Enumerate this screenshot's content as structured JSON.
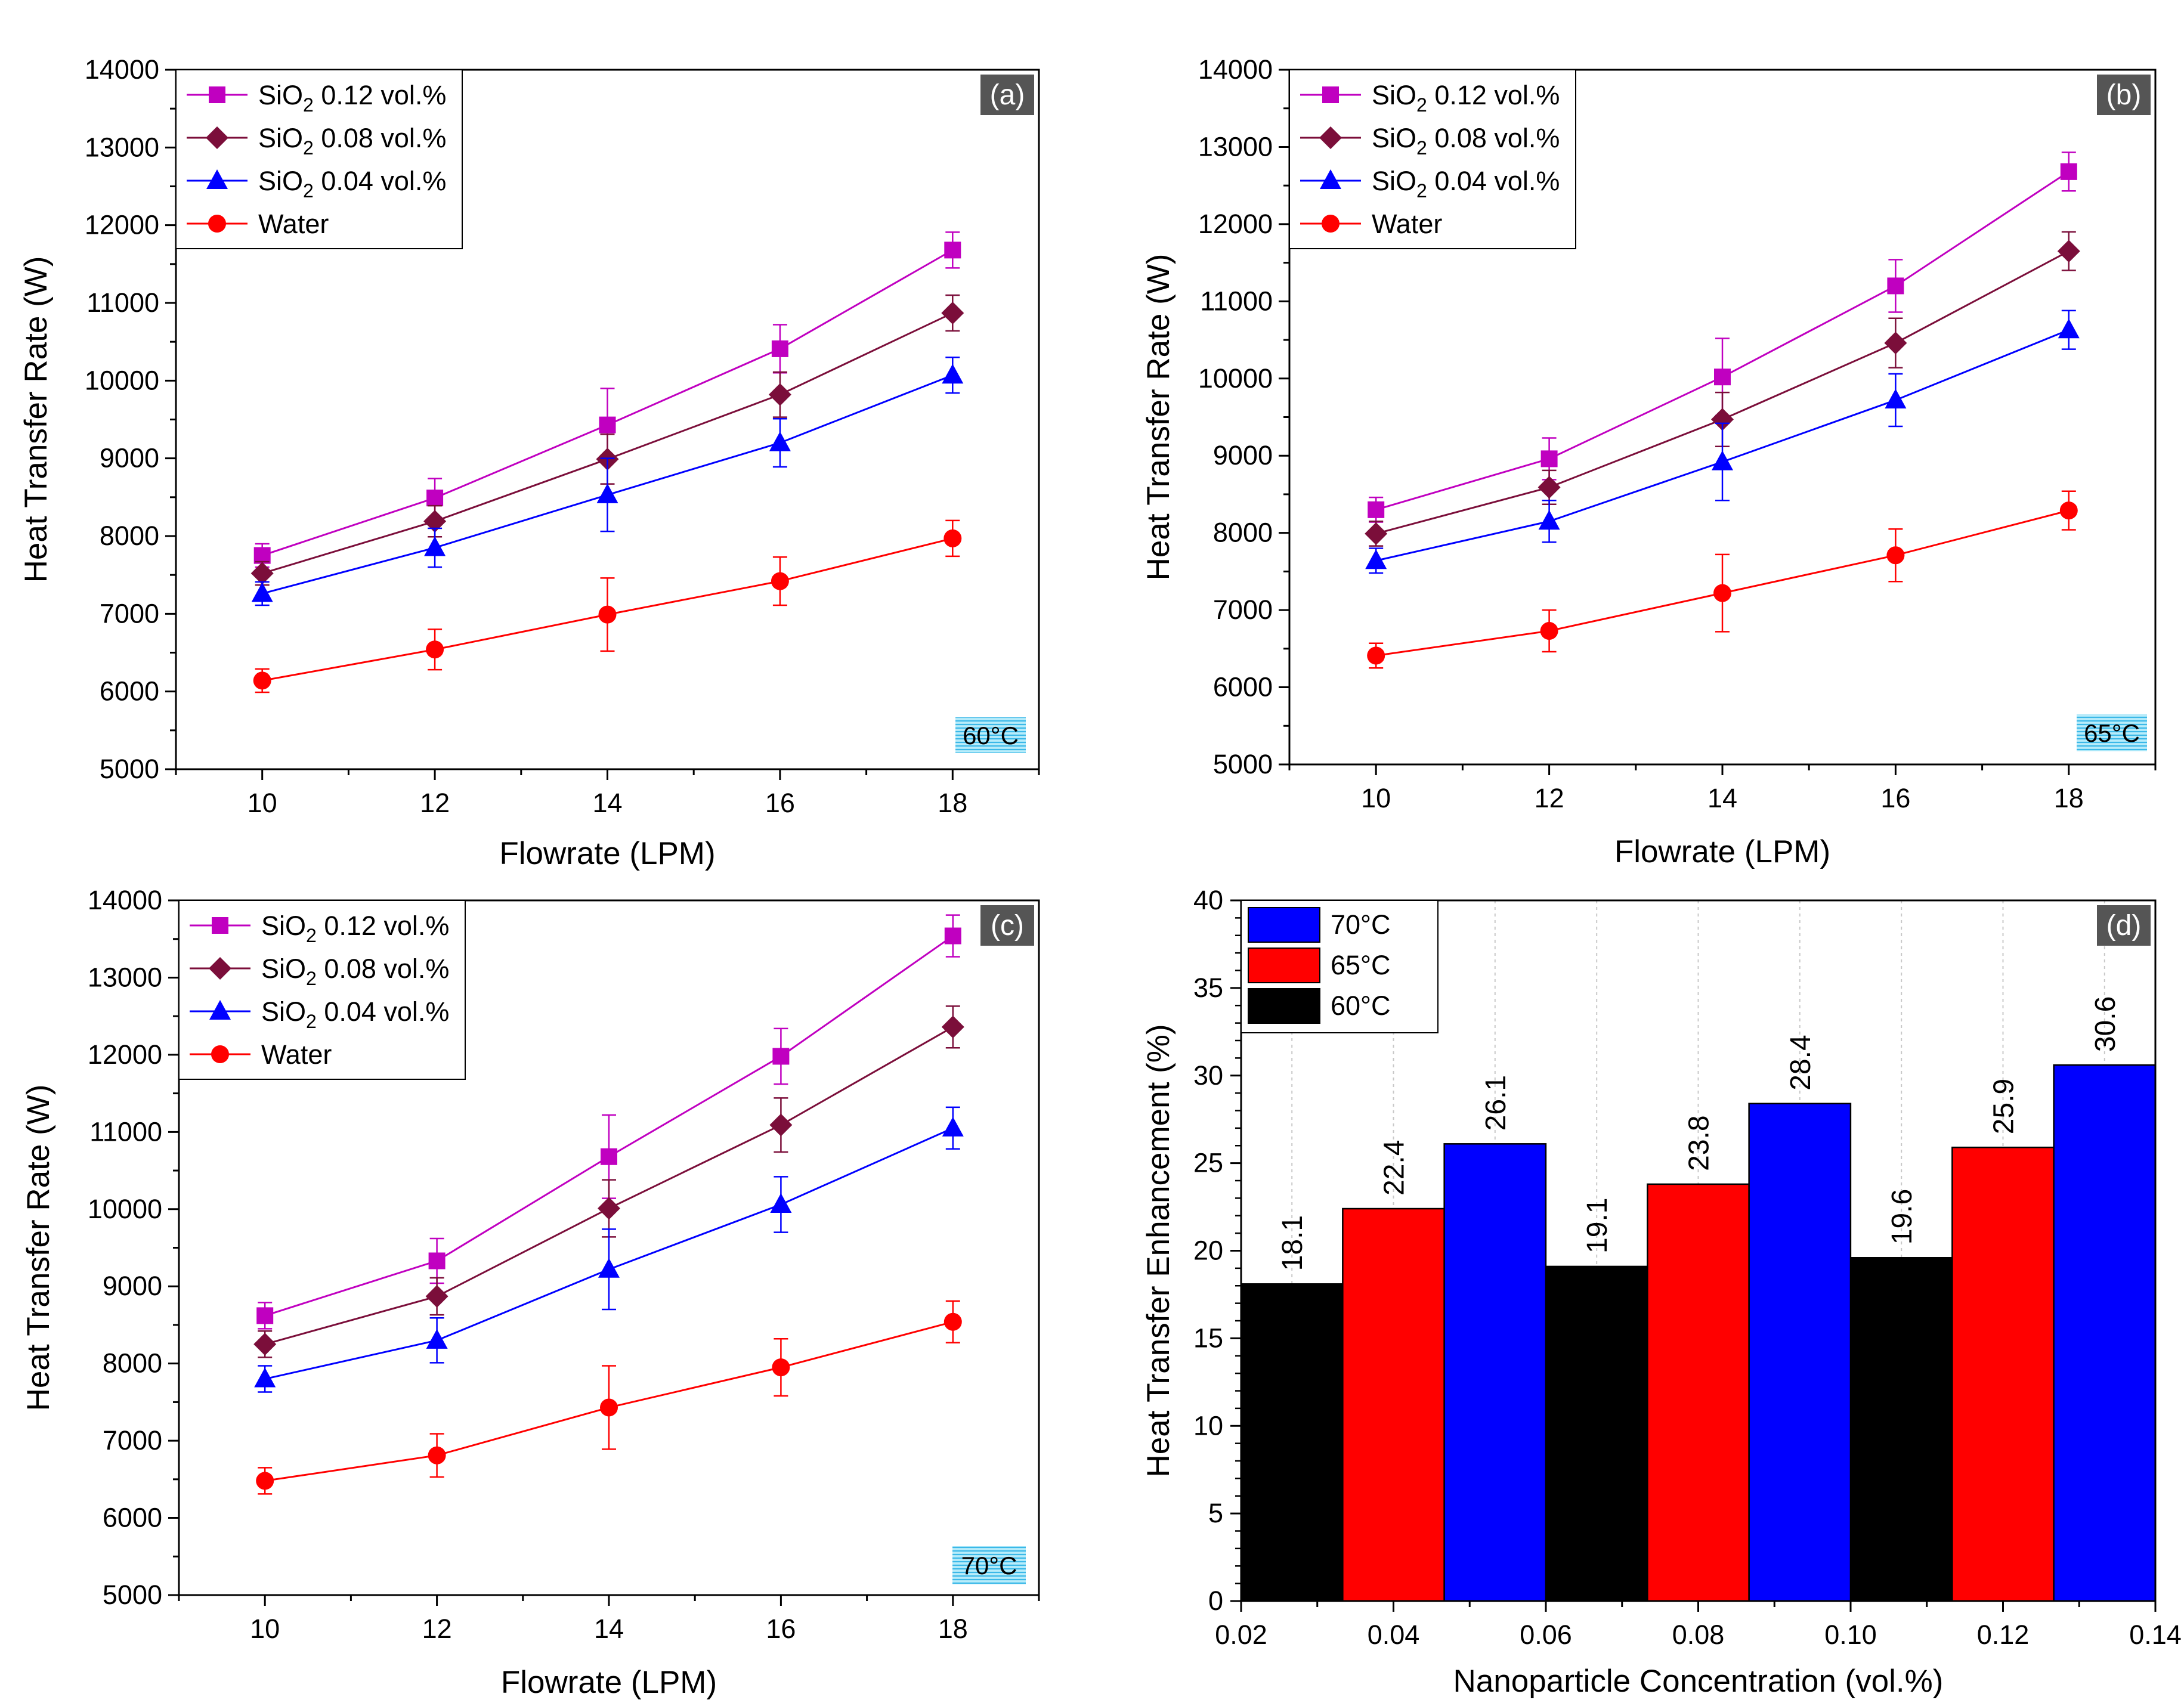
{
  "chart_data": [
    {
      "type": "line",
      "panel_label": "(a)",
      "temperature_label": "60°C",
      "xlabel": "Flowrate (LPM)",
      "ylabel": "Heat Transfer Rate (W)",
      "xlim": [
        9,
        19
      ],
      "ylim": [
        5000,
        14000
      ],
      "xticks": [
        "10",
        "12",
        "14",
        "16",
        "18"
      ],
      "yticks": [
        "5000",
        "6000",
        "7000",
        "8000",
        "9000",
        "10000",
        "11000",
        "12000",
        "13000",
        "14000"
      ],
      "x": [
        10,
        12,
        14,
        16,
        18
      ],
      "legend_position": "top-left",
      "series": [
        {
          "name": "SiO2 0.12 vol.%",
          "legend": {
            "prefix": "SiO",
            "sub": "2",
            "suffix": " 0.12 vol.%"
          },
          "color": "#c000c0",
          "marker": "square",
          "values": [
            7750,
            8490,
            9430,
            10410,
            11680
          ],
          "errors": [
            150,
            250,
            470,
            310,
            230
          ]
        },
        {
          "name": "SiO2 0.08 vol.%",
          "legend": {
            "prefix": "SiO",
            "sub": "2",
            "suffix": " 0.08 vol.%"
          },
          "color": "#7b0e3a",
          "marker": "diamond",
          "values": [
            7520,
            8190,
            8990,
            9820,
            10870
          ],
          "errors": [
            150,
            200,
            320,
            290,
            230
          ]
        },
        {
          "name": "SiO2 0.04 vol.%",
          "legend": {
            "prefix": "SiO",
            "sub": "2",
            "suffix": " 0.04 vol.%"
          },
          "color": "#0000ff",
          "marker": "triangle",
          "values": [
            7260,
            7850,
            8530,
            9200,
            10070
          ],
          "errors": [
            150,
            250,
            470,
            310,
            230
          ]
        },
        {
          "name": "Water",
          "legend": {
            "prefix": "Water",
            "sub": "",
            "suffix": ""
          },
          "color": "#ff0000",
          "marker": "circle",
          "values": [
            6140,
            6540,
            6990,
            7420,
            7970
          ],
          "errors": [
            150,
            260,
            470,
            310,
            230
          ]
        }
      ]
    },
    {
      "type": "line",
      "panel_label": "(b)",
      "temperature_label": "65°C",
      "xlabel": "Flowrate (LPM)",
      "ylabel": "Heat Transfer Rate (W)",
      "xlim": [
        9,
        19
      ],
      "ylim": [
        5000,
        14000
      ],
      "xticks": [
        "10",
        "12",
        "14",
        "16",
        "18"
      ],
      "yticks": [
        "5000",
        "6000",
        "7000",
        "8000",
        "9000",
        "10000",
        "11000",
        "12000",
        "13000",
        "14000"
      ],
      "x": [
        10,
        12,
        14,
        16,
        18
      ],
      "legend_position": "top-left",
      "series": [
        {
          "name": "SiO2 0.12 vol.%",
          "legend": {
            "prefix": "SiO",
            "sub": "2",
            "suffix": " 0.12 vol.%"
          },
          "color": "#c000c0",
          "marker": "square",
          "values": [
            8300,
            8960,
            10020,
            11200,
            12680
          ],
          "errors": [
            160,
            270,
            500,
            340,
            250
          ]
        },
        {
          "name": "SiO2 0.08 vol.%",
          "legend": {
            "prefix": "SiO",
            "sub": "2",
            "suffix": " 0.08 vol.%"
          },
          "color": "#7b0e3a",
          "marker": "diamond",
          "values": [
            7990,
            8590,
            9470,
            10460,
            11650
          ],
          "errors": [
            160,
            220,
            350,
            320,
            250
          ]
        },
        {
          "name": "SiO2 0.04 vol.%",
          "legend": {
            "prefix": "SiO",
            "sub": "2",
            "suffix": " 0.04 vol.%"
          },
          "color": "#0000ff",
          "marker": "triangle",
          "values": [
            7640,
            8150,
            8920,
            9720,
            10630
          ],
          "errors": [
            160,
            270,
            500,
            340,
            250
          ]
        },
        {
          "name": "Water",
          "legend": {
            "prefix": "Water",
            "sub": "",
            "suffix": ""
          },
          "color": "#ff0000",
          "marker": "circle",
          "values": [
            6410,
            6730,
            7220,
            7710,
            8290
          ],
          "errors": [
            160,
            270,
            500,
            340,
            250
          ]
        }
      ]
    },
    {
      "type": "line",
      "panel_label": "(c)",
      "temperature_label": "70°C",
      "xlabel": "Flowrate (LPM)",
      "ylabel": "Heat Transfer Rate (W)",
      "xlim": [
        9,
        19
      ],
      "ylim": [
        5000,
        14000
      ],
      "xticks": [
        "10",
        "12",
        "14",
        "16",
        "18"
      ],
      "yticks": [
        "5000",
        "6000",
        "7000",
        "8000",
        "9000",
        "10000",
        "11000",
        "12000",
        "13000",
        "14000"
      ],
      "x": [
        10,
        12,
        14,
        16,
        18
      ],
      "legend_position": "top-left",
      "series": [
        {
          "name": "SiO2 0.12 vol.%",
          "legend": {
            "prefix": "SiO",
            "sub": "2",
            "suffix": " 0.12 vol.%"
          },
          "color": "#c000c0",
          "marker": "square",
          "values": [
            8620,
            9330,
            10680,
            11980,
            13540
          ],
          "errors": [
            170,
            290,
            540,
            360,
            270
          ]
        },
        {
          "name": "SiO2 0.08 vol.%",
          "legend": {
            "prefix": "SiO",
            "sub": "2",
            "suffix": " 0.08 vol.%"
          },
          "color": "#7b0e3a",
          "marker": "diamond",
          "values": [
            8250,
            8870,
            10010,
            11090,
            12360
          ],
          "errors": [
            170,
            240,
            370,
            350,
            270
          ]
        },
        {
          "name": "SiO2 0.04 vol.%",
          "legend": {
            "prefix": "SiO",
            "sub": "2",
            "suffix": " 0.04 vol.%"
          },
          "color": "#0000ff",
          "marker": "triangle",
          "values": [
            7800,
            8300,
            9220,
            10060,
            11050
          ],
          "errors": [
            170,
            290,
            520,
            360,
            270
          ]
        },
        {
          "name": "Water",
          "legend": {
            "prefix": "Water",
            "sub": "",
            "suffix": ""
          },
          "color": "#ff0000",
          "marker": "circle",
          "values": [
            6480,
            6810,
            7430,
            7950,
            8540
          ],
          "errors": [
            170,
            280,
            540,
            370,
            270
          ]
        }
      ]
    },
    {
      "type": "bar",
      "panel_label": "(d)",
      "xlabel": "Nanoparticle Concentration (vol.%)",
      "ylabel": "Heat Transfer Enhancement (%)",
      "xlim": [
        0.02,
        0.14
      ],
      "ylim": [
        0,
        40
      ],
      "xticks": [
        "0.02",
        "0.04",
        "0.06",
        "0.08",
        "0.10",
        "0.12",
        "0.14"
      ],
      "yticks": [
        "0",
        "5",
        "10",
        "15",
        "20",
        "25",
        "30",
        "35",
        "40"
      ],
      "categories": [
        "0.04",
        "0.08",
        "0.12"
      ],
      "category_values": [
        0.04,
        0.08,
        0.12
      ],
      "grid": "vertical dotted",
      "legend_position": "top-left",
      "series": [
        {
          "name": "60°C",
          "color": "#000000",
          "values": [
            18.1,
            19.1,
            19.6
          ],
          "labels": [
            "18.1",
            "19.1",
            "19.6"
          ]
        },
        {
          "name": "65°C",
          "color": "#ff0000",
          "values": [
            22.4,
            23.8,
            25.9
          ],
          "labels": [
            "22.4",
            "23.8",
            "25.9"
          ]
        },
        {
          "name": "70°C",
          "color": "#0000ff",
          "values": [
            26.1,
            28.4,
            30.6
          ],
          "labels": [
            "26.1",
            "28.4",
            "30.6"
          ]
        }
      ],
      "legend_order": [
        "70°C",
        "65°C",
        "60°C"
      ]
    }
  ]
}
